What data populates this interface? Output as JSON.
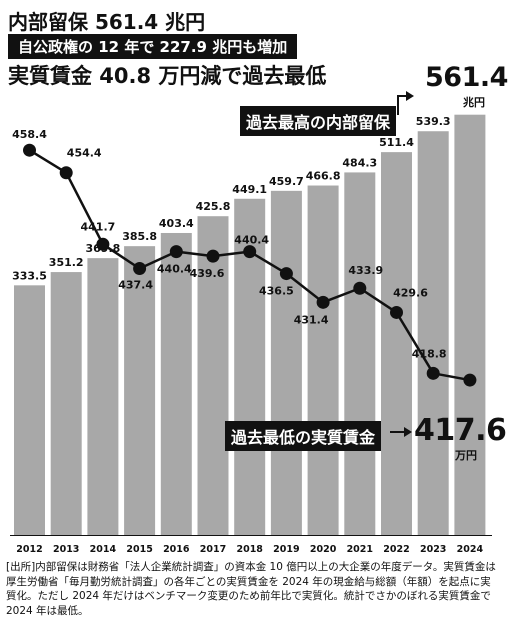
{
  "headline": {
    "title": "内部留保 561.4 兆円",
    "banner": "自公政権の 12 年で 227.9 兆円も増加",
    "subtitle": "実質賃金 40.8 万円減で過去最低"
  },
  "annotations": {
    "reserve_label": "過去最高の内部留保",
    "reserve_value": "561.4",
    "reserve_unit": "兆円",
    "wage_label": "過去最低の実質賃金",
    "wage_value": "417.6",
    "wage_unit": "万円"
  },
  "source": {
    "tag": "[出所]",
    "text": "内部留保は財務省「法人企業統計調査」の資本金 10 億円以上の大企業の年度データ。実質賃金は厚生労働省「毎月勤労統計調査」の各年ごとの実質賃金を 2024 年の現金給与総額（年額）を起点に実質化。ただし 2024 年だけはベンチマーク変更のため前年比で実質化。統計でさかのぼれる実質賃金で 2024 年は最低。"
  },
  "chart_data": {
    "type": "bar",
    "categories": [
      "2012",
      "2013",
      "2014",
      "2015",
      "2016",
      "2017",
      "2018",
      "2019",
      "2020",
      "2021",
      "2022",
      "2023",
      "2024"
    ],
    "series": [
      {
        "kind": "bar",
        "values": [
          333.5,
          351.2,
          369.8,
          385.8,
          403.4,
          425.8,
          449.1,
          459.7,
          466.8,
          484.3,
          511.4,
          539.3,
          561.4
        ],
        "labels": [
          "333.5",
          "351.2",
          "369.8",
          "385.8",
          "403.4",
          "425.8",
          "449.1",
          "459.7",
          "466.8",
          "484.3",
          "511.4",
          "539.3",
          ""
        ],
        "color": "#a8a8a8"
      },
      {
        "kind": "line",
        "values": [
          458.4,
          454.4,
          441.7,
          437.4,
          440.4,
          439.6,
          440.4,
          436.5,
          431.4,
          433.9,
          429.6,
          418.8,
          417.6
        ],
        "labels": [
          "458.4",
          "454.4",
          "441.7",
          "437.4",
          "440.4",
          "439.6",
          "440.4",
          "436.5",
          "431.4",
          "433.9",
          "429.6",
          "418.8",
          ""
        ],
        "color": "#111111"
      }
    ],
    "bar_axis_range": [
      0,
      565
    ],
    "line_axis_range": [
      413,
      465
    ],
    "grid": false,
    "legend": "none"
  }
}
